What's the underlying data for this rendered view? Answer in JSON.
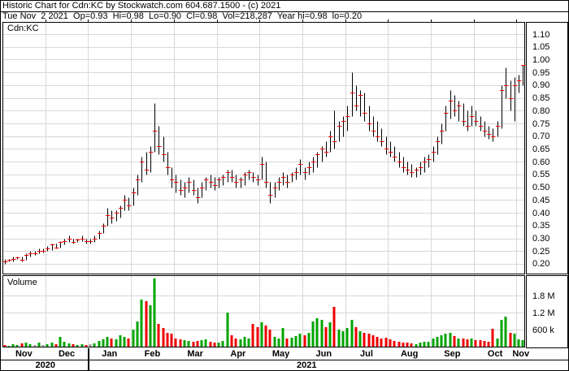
{
  "header": {
    "line1": "Historic Chart for Cdn:KC by Stockwatch.com 604.687.1500 - (c) 2021",
    "line2": "Tue Nov  2 2021  Op=0.93  Hi=0.98  Lo=0.90  Cl=0.98  Vol=218,287  Year hi=0.98  lo=0.20"
  },
  "price_panel": {
    "symbol_label": "Cdn:KC"
  },
  "volume_panel": {
    "label": "Volume"
  },
  "colors": {
    "bar": "#000000",
    "close_tick": "#ff0000",
    "volume_up": "#00a400",
    "volume_down": "#ee0000",
    "volume_neutral": "#9a9a9a",
    "grid": "#d8d8d8",
    "frame": "#000000"
  },
  "chart_data": {
    "type": "ohlc-bar-with-volume",
    "title": "Historic Chart for Cdn:KC",
    "price_axis": {
      "ticks": [
        1.1,
        1.05,
        1.0,
        0.95,
        0.9,
        0.85,
        0.8,
        0.75,
        0.7,
        0.65,
        0.6,
        0.55,
        0.5,
        0.45,
        0.4,
        0.35,
        0.3,
        0.25,
        0.2
      ],
      "tick_step": 0.05
    },
    "volume_axis": {
      "ticks": [
        {
          "label": "1.8 M",
          "value_k": 1800
        },
        {
          "label": "1.2 M",
          "value_k": 1200
        },
        {
          "label": "600 k",
          "value_k": 600
        }
      ]
    },
    "months": [
      {
        "label": "Nov",
        "start": 0
      },
      {
        "label": "Dec",
        "start": 10
      },
      {
        "label": "Jan",
        "start": 20
      },
      {
        "label": "Feb",
        "start": 30
      },
      {
        "label": "Mar",
        "start": 40
      },
      {
        "label": "Apr",
        "start": 50
      },
      {
        "label": "May",
        "start": 60
      },
      {
        "label": "Jun",
        "start": 70
      },
      {
        "label": "Jul",
        "start": 80
      },
      {
        "label": "Aug",
        "start": 90
      },
      {
        "label": "Sep",
        "start": 100
      },
      {
        "label": "Oct",
        "start": 110
      },
      {
        "label": "Nov",
        "start": 120
      }
    ],
    "years": [
      {
        "label": "2020",
        "start_month_index": 0
      },
      {
        "label": "2021",
        "start_month_index": 2
      }
    ],
    "bars": {
      "fields": [
        "high",
        "low",
        "close",
        "volume_k",
        "direction"
      ],
      "data": [
        [
          0.22,
          0.2,
          0.21,
          60,
          -1
        ],
        [
          0.22,
          0.21,
          0.215,
          40,
          1
        ],
        [
          0.23,
          0.21,
          0.22,
          90,
          1
        ],
        [
          0.23,
          0.22,
          0.225,
          50,
          1
        ],
        [
          0.23,
          0.21,
          0.215,
          120,
          -1
        ],
        [
          0.24,
          0.215,
          0.235,
          150,
          1
        ],
        [
          0.25,
          0.23,
          0.24,
          80,
          1
        ],
        [
          0.25,
          0.235,
          0.24,
          60,
          0
        ],
        [
          0.26,
          0.24,
          0.25,
          130,
          1
        ],
        [
          0.26,
          0.245,
          0.25,
          70,
          0
        ],
        [
          0.27,
          0.25,
          0.26,
          100,
          1
        ],
        [
          0.28,
          0.255,
          0.275,
          140,
          1
        ],
        [
          0.28,
          0.26,
          0.265,
          90,
          -1
        ],
        [
          0.29,
          0.265,
          0.285,
          350,
          1
        ],
        [
          0.3,
          0.275,
          0.29,
          160,
          1
        ],
        [
          0.31,
          0.285,
          0.3,
          120,
          1
        ],
        [
          0.3,
          0.28,
          0.285,
          100,
          -1
        ],
        [
          0.3,
          0.285,
          0.295,
          70,
          1
        ],
        [
          0.31,
          0.29,
          0.3,
          90,
          1
        ],
        [
          0.3,
          0.28,
          0.29,
          60,
          -1
        ],
        [
          0.3,
          0.28,
          0.29,
          80,
          0
        ],
        [
          0.31,
          0.285,
          0.3,
          120,
          1
        ],
        [
          0.33,
          0.3,
          0.32,
          200,
          1
        ],
        [
          0.36,
          0.32,
          0.35,
          260,
          1
        ],
        [
          0.42,
          0.35,
          0.39,
          340,
          1
        ],
        [
          0.41,
          0.36,
          0.38,
          300,
          -1
        ],
        [
          0.41,
          0.37,
          0.4,
          250,
          1
        ],
        [
          0.43,
          0.38,
          0.42,
          400,
          1
        ],
        [
          0.47,
          0.41,
          0.45,
          350,
          1
        ],
        [
          0.46,
          0.41,
          0.43,
          300,
          -1
        ],
        [
          0.5,
          0.43,
          0.48,
          600,
          1
        ],
        [
          0.55,
          0.47,
          0.53,
          900,
          1
        ],
        [
          0.62,
          0.52,
          0.6,
          1650,
          1
        ],
        [
          0.64,
          0.55,
          0.57,
          1600,
          -1
        ],
        [
          0.66,
          0.56,
          0.64,
          1450,
          1
        ],
        [
          0.83,
          0.64,
          0.72,
          2400,
          1
        ],
        [
          0.74,
          0.63,
          0.66,
          800,
          -1
        ],
        [
          0.7,
          0.6,
          0.63,
          650,
          -1
        ],
        [
          0.64,
          0.55,
          0.58,
          500,
          -1
        ],
        [
          0.58,
          0.5,
          0.53,
          450,
          -1
        ],
        [
          0.55,
          0.48,
          0.52,
          300,
          -1
        ],
        [
          0.53,
          0.47,
          0.49,
          250,
          -1
        ],
        [
          0.52,
          0.46,
          0.5,
          220,
          1
        ],
        [
          0.54,
          0.48,
          0.52,
          200,
          1
        ],
        [
          0.53,
          0.47,
          0.49,
          180,
          -1
        ],
        [
          0.5,
          0.44,
          0.46,
          200,
          -1
        ],
        [
          0.52,
          0.46,
          0.5,
          240,
          1
        ],
        [
          0.54,
          0.49,
          0.53,
          260,
          1
        ],
        [
          0.55,
          0.5,
          0.52,
          160,
          -1
        ],
        [
          0.54,
          0.49,
          0.51,
          140,
          -1
        ],
        [
          0.54,
          0.5,
          0.53,
          150,
          1
        ],
        [
          0.55,
          0.51,
          0.54,
          200,
          1
        ],
        [
          0.57,
          0.52,
          0.56,
          1200,
          1
        ],
        [
          0.57,
          0.52,
          0.54,
          400,
          -1
        ],
        [
          0.55,
          0.5,
          0.52,
          300,
          -1
        ],
        [
          0.54,
          0.5,
          0.53,
          250,
          1
        ],
        [
          0.56,
          0.51,
          0.55,
          350,
          1
        ],
        [
          0.57,
          0.53,
          0.56,
          280,
          1
        ],
        [
          0.56,
          0.52,
          0.54,
          800,
          -1
        ],
        [
          0.55,
          0.51,
          0.53,
          700,
          -1
        ],
        [
          0.62,
          0.53,
          0.59,
          850,
          1
        ],
        [
          0.6,
          0.5,
          0.52,
          750,
          -1
        ],
        [
          0.52,
          0.44,
          0.47,
          600,
          -1
        ],
        [
          0.52,
          0.46,
          0.5,
          350,
          1
        ],
        [
          0.54,
          0.49,
          0.52,
          300,
          1
        ],
        [
          0.56,
          0.51,
          0.54,
          650,
          1
        ],
        [
          0.55,
          0.5,
          0.52,
          280,
          -1
        ],
        [
          0.56,
          0.52,
          0.55,
          320,
          1
        ],
        [
          0.58,
          0.53,
          0.56,
          380,
          1
        ],
        [
          0.61,
          0.55,
          0.59,
          450,
          1
        ],
        [
          0.58,
          0.53,
          0.56,
          400,
          -1
        ],
        [
          0.6,
          0.55,
          0.58,
          500,
          1
        ],
        [
          0.62,
          0.56,
          0.6,
          900,
          1
        ],
        [
          0.64,
          0.58,
          0.63,
          1000,
          1
        ],
        [
          0.66,
          0.6,
          0.65,
          950,
          1
        ],
        [
          0.68,
          0.62,
          0.64,
          700,
          -1
        ],
        [
          0.72,
          0.64,
          0.7,
          850,
          1
        ],
        [
          0.8,
          0.65,
          0.68,
          1400,
          -1
        ],
        [
          0.76,
          0.68,
          0.74,
          600,
          1
        ],
        [
          0.78,
          0.7,
          0.76,
          550,
          1
        ],
        [
          0.82,
          0.72,
          0.78,
          650,
          1
        ],
        [
          0.95,
          0.78,
          0.87,
          950,
          1
        ],
        [
          0.9,
          0.8,
          0.82,
          700,
          -1
        ],
        [
          0.88,
          0.78,
          0.86,
          550,
          1
        ],
        [
          0.87,
          0.76,
          0.79,
          500,
          -1
        ],
        [
          0.82,
          0.72,
          0.75,
          450,
          -1
        ],
        [
          0.78,
          0.7,
          0.72,
          400,
          -1
        ],
        [
          0.76,
          0.68,
          0.7,
          350,
          -1
        ],
        [
          0.73,
          0.66,
          0.68,
          300,
          -1
        ],
        [
          0.7,
          0.63,
          0.65,
          320,
          -1
        ],
        [
          0.68,
          0.62,
          0.64,
          250,
          -1
        ],
        [
          0.66,
          0.6,
          0.62,
          200,
          -1
        ],
        [
          0.64,
          0.58,
          0.6,
          180,
          -1
        ],
        [
          0.62,
          0.56,
          0.58,
          150,
          -1
        ],
        [
          0.6,
          0.55,
          0.57,
          130,
          -1
        ],
        [
          0.59,
          0.54,
          0.56,
          120,
          -1
        ],
        [
          0.58,
          0.54,
          0.57,
          100,
          1
        ],
        [
          0.6,
          0.55,
          0.58,
          140,
          1
        ],
        [
          0.62,
          0.56,
          0.6,
          160,
          1
        ],
        [
          0.63,
          0.58,
          0.61,
          180,
          1
        ],
        [
          0.66,
          0.6,
          0.64,
          300,
          1
        ],
        [
          0.7,
          0.63,
          0.68,
          350,
          1
        ],
        [
          0.75,
          0.67,
          0.72,
          400,
          1
        ],
        [
          0.82,
          0.72,
          0.79,
          450,
          1
        ],
        [
          0.88,
          0.77,
          0.84,
          500,
          1
        ],
        [
          0.86,
          0.78,
          0.8,
          380,
          -1
        ],
        [
          0.84,
          0.76,
          0.82,
          300,
          1
        ],
        [
          0.83,
          0.74,
          0.76,
          280,
          -1
        ],
        [
          0.8,
          0.72,
          0.74,
          250,
          -1
        ],
        [
          0.82,
          0.74,
          0.78,
          300,
          1
        ],
        [
          0.8,
          0.74,
          0.76,
          240,
          -1
        ],
        [
          0.78,
          0.72,
          0.74,
          220,
          -1
        ],
        [
          0.76,
          0.7,
          0.72,
          200,
          -1
        ],
        [
          0.74,
          0.69,
          0.71,
          180,
          -1
        ],
        [
          0.73,
          0.68,
          0.7,
          620,
          -1
        ],
        [
          0.76,
          0.7,
          0.74,
          300,
          1
        ],
        [
          0.9,
          0.73,
          0.88,
          950,
          1
        ],
        [
          0.97,
          0.85,
          0.9,
          1050,
          1
        ],
        [
          0.92,
          0.8,
          0.85,
          500,
          -1
        ],
        [
          0.93,
          0.76,
          0.9,
          450,
          1
        ],
        [
          0.94,
          0.87,
          0.92,
          250,
          1
        ],
        [
          0.98,
          0.9,
          0.98,
          218,
          1
        ]
      ]
    }
  }
}
